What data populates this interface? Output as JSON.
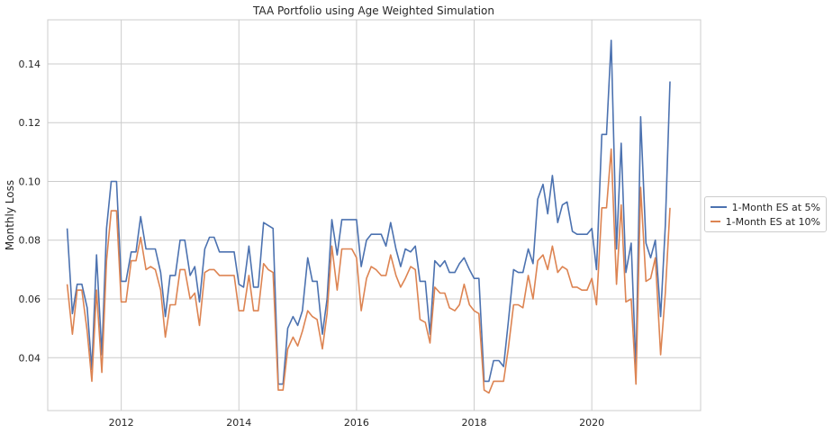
{
  "chart_data": {
    "type": "line",
    "title": "TAA Portfolio using Age Weighted Simulation",
    "xlabel": "",
    "ylabel": "Monthly Loss",
    "xlim": [
      2010.75,
      2021.85
    ],
    "ylim": [
      0.022,
      0.155
    ],
    "xticks": [
      2012,
      2014,
      2016,
      2018,
      2020
    ],
    "xtick_labels": [
      "2012",
      "2014",
      "2016",
      "2018",
      "2020"
    ],
    "yticks": [
      0.04,
      0.06,
      0.08,
      0.1,
      0.12,
      0.14
    ],
    "ytick_labels": [
      "0.04",
      "0.06",
      "0.08",
      "0.10",
      "0.12",
      "0.14"
    ],
    "grid": true,
    "legend_position": "right, outside plot",
    "colors": {
      "series1": "#4c72b0",
      "series2": "#dd8452",
      "grid": "#cccccc",
      "frame": "#cccccc"
    },
    "x": [
      2011.08,
      2011.17,
      2011.25,
      2011.33,
      2011.42,
      2011.5,
      2011.58,
      2011.67,
      2011.75,
      2011.83,
      2011.92,
      2012.0,
      2012.08,
      2012.17,
      2012.25,
      2012.33,
      2012.42,
      2012.5,
      2012.58,
      2012.67,
      2012.75,
      2012.83,
      2012.92,
      2013.0,
      2013.08,
      2013.17,
      2013.25,
      2013.33,
      2013.42,
      2013.5,
      2013.58,
      2013.67,
      2013.75,
      2013.83,
      2013.92,
      2014.0,
      2014.08,
      2014.17,
      2014.25,
      2014.33,
      2014.42,
      2014.5,
      2014.58,
      2014.67,
      2014.75,
      2014.83,
      2014.92,
      2015.0,
      2015.08,
      2015.17,
      2015.25,
      2015.33,
      2015.42,
      2015.5,
      2015.58,
      2015.67,
      2015.75,
      2015.83,
      2015.92,
      2016.0,
      2016.08,
      2016.17,
      2016.25,
      2016.33,
      2016.42,
      2016.5,
      2016.58,
      2016.67,
      2016.75,
      2016.83,
      2016.92,
      2017.0,
      2017.08,
      2017.17,
      2017.25,
      2017.33,
      2017.42,
      2017.5,
      2017.58,
      2017.67,
      2017.75,
      2017.83,
      2017.92,
      2018.0,
      2018.08,
      2018.17,
      2018.25,
      2018.33,
      2018.42,
      2018.5,
      2018.58,
      2018.67,
      2018.75,
      2018.83,
      2018.92,
      2019.0,
      2019.08,
      2019.17,
      2019.25,
      2019.33,
      2019.42,
      2019.5,
      2019.58,
      2019.67,
      2019.75,
      2019.83,
      2019.92,
      2020.0,
      2020.08,
      2020.17,
      2020.25,
      2020.33,
      2020.42,
      2020.5,
      2020.58,
      2020.67,
      2020.75,
      2020.83,
      2020.92,
      2021.0,
      2021.08,
      2021.17,
      2021.25,
      2021.33
    ],
    "series": [
      {
        "name": "1-Month ES at 5%",
        "values": [
          0.084,
          0.055,
          0.065,
          0.065,
          0.057,
          0.036,
          0.075,
          0.041,
          0.084,
          0.1,
          0.1,
          0.066,
          0.066,
          0.076,
          0.076,
          0.088,
          0.077,
          0.077,
          0.077,
          0.069,
          0.054,
          0.068,
          0.068,
          0.08,
          0.08,
          0.068,
          0.071,
          0.059,
          0.077,
          0.081,
          0.081,
          0.076,
          0.076,
          0.076,
          0.076,
          0.065,
          0.064,
          0.078,
          0.064,
          0.064,
          0.086,
          0.085,
          0.084,
          0.031,
          0.031,
          0.05,
          0.054,
          0.051,
          0.056,
          0.074,
          0.066,
          0.066,
          0.048,
          0.06,
          0.087,
          0.075,
          0.087,
          0.087,
          0.087,
          0.087,
          0.071,
          0.08,
          0.082,
          0.082,
          0.082,
          0.078,
          0.086,
          0.077,
          0.071,
          0.077,
          0.076,
          0.078,
          0.066,
          0.066,
          0.048,
          0.073,
          0.071,
          0.073,
          0.069,
          0.069,
          0.072,
          0.074,
          0.07,
          0.067,
          0.067,
          0.032,
          0.032,
          0.039,
          0.039,
          0.037,
          0.052,
          0.07,
          0.069,
          0.069,
          0.077,
          0.072,
          0.094,
          0.099,
          0.089,
          0.102,
          0.086,
          0.092,
          0.093,
          0.083,
          0.082,
          0.082,
          0.082,
          0.084,
          0.07,
          0.116,
          0.116,
          0.148,
          0.077,
          0.113,
          0.069,
          0.079,
          0.036,
          0.122,
          0.079,
          0.074,
          0.08,
          0.054,
          0.085,
          0.134
        ]
      },
      {
        "name": "1-Month ES at 10%",
        "values": [
          0.065,
          0.048,
          0.063,
          0.063,
          0.049,
          0.032,
          0.063,
          0.035,
          0.073,
          0.09,
          0.09,
          0.059,
          0.059,
          0.073,
          0.073,
          0.081,
          0.07,
          0.071,
          0.07,
          0.063,
          0.047,
          0.058,
          0.058,
          0.07,
          0.07,
          0.06,
          0.062,
          0.051,
          0.069,
          0.07,
          0.07,
          0.068,
          0.068,
          0.068,
          0.068,
          0.056,
          0.056,
          0.068,
          0.056,
          0.056,
          0.072,
          0.07,
          0.069,
          0.029,
          0.029,
          0.043,
          0.047,
          0.044,
          0.049,
          0.056,
          0.054,
          0.053,
          0.043,
          0.055,
          0.078,
          0.063,
          0.077,
          0.077,
          0.077,
          0.074,
          0.056,
          0.067,
          0.071,
          0.07,
          0.068,
          0.068,
          0.075,
          0.068,
          0.064,
          0.067,
          0.071,
          0.07,
          0.053,
          0.052,
          0.045,
          0.064,
          0.062,
          0.062,
          0.057,
          0.056,
          0.058,
          0.065,
          0.058,
          0.056,
          0.055,
          0.029,
          0.028,
          0.032,
          0.032,
          0.032,
          0.043,
          0.058,
          0.058,
          0.057,
          0.068,
          0.06,
          0.073,
          0.075,
          0.07,
          0.078,
          0.069,
          0.071,
          0.07,
          0.064,
          0.064,
          0.063,
          0.063,
          0.067,
          0.058,
          0.091,
          0.091,
          0.111,
          0.065,
          0.092,
          0.059,
          0.06,
          0.031,
          0.098,
          0.066,
          0.067,
          0.074,
          0.041,
          0.062,
          0.091
        ]
      }
    ]
  }
}
